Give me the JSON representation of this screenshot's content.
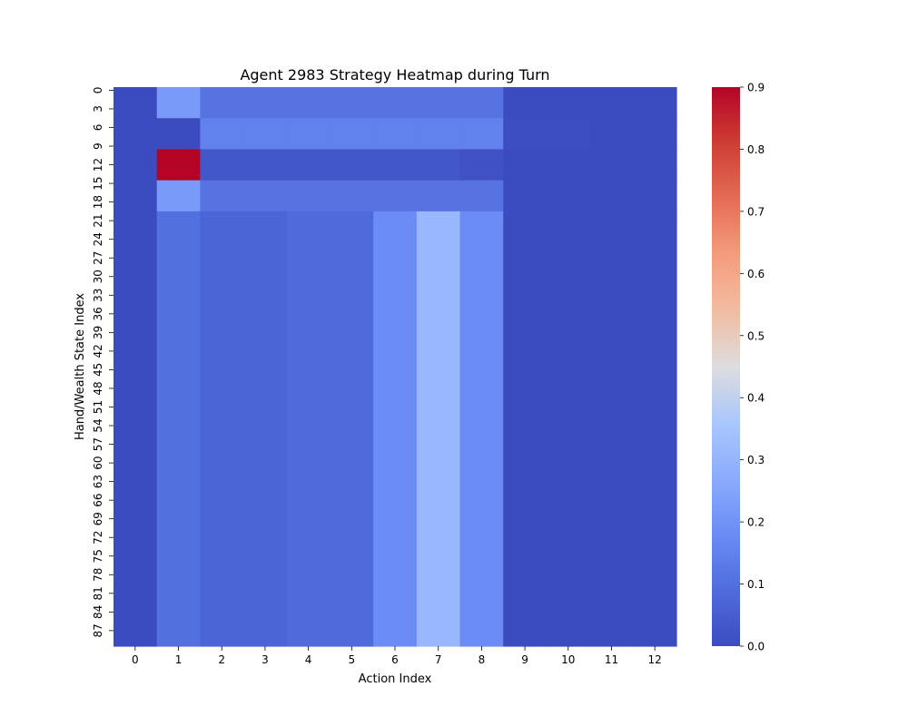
{
  "chart_data": {
    "type": "heatmap",
    "title": "Agent 2983 Strategy Heatmap during Turn",
    "xlabel": "Action Index",
    "ylabel": "Hand/Wealth State Index",
    "x_categories": [
      "0",
      "1",
      "2",
      "3",
      "4",
      "5",
      "6",
      "7",
      "8",
      "9",
      "10",
      "11",
      "12"
    ],
    "y_tick_labels": [
      "0",
      "3",
      "6",
      "9",
      "12",
      "15",
      "18",
      "21",
      "24",
      "27",
      "30",
      "33",
      "36",
      "39",
      "42",
      "45",
      "48",
      "51",
      "54",
      "57",
      "60",
      "63",
      "66",
      "69",
      "72",
      "75",
      "78",
      "81",
      "84",
      "87"
    ],
    "y_tick_rows": [
      0,
      3,
      6,
      9,
      12,
      15,
      18,
      21,
      24,
      27,
      30,
      33,
      36,
      39,
      42,
      45,
      48,
      51,
      54,
      57,
      60,
      63,
      66,
      69,
      72,
      75,
      78,
      81,
      84,
      87
    ],
    "row_count": 90,
    "colormap": "coolwarm",
    "vmin": 0.0,
    "vmax": 0.9,
    "colorbar_ticks": [
      "0.0",
      "0.1",
      "0.2",
      "0.3",
      "0.4",
      "0.5",
      "0.6",
      "0.7",
      "0.8",
      "0.9"
    ],
    "colorbar_tick_values": [
      0.0,
      0.1,
      0.2,
      0.3,
      0.4,
      0.5,
      0.6,
      0.7,
      0.8,
      0.9
    ],
    "row_blocks": [
      {
        "rows": [
          0,
          5
        ],
        "values": [
          0.0,
          0.22,
          0.11,
          0.11,
          0.11,
          0.11,
          0.11,
          0.11,
          0.11,
          0.0,
          0.0,
          0.0,
          0.0
        ]
      },
      {
        "rows": [
          5,
          10
        ],
        "values": [
          0.0,
          0.0,
          0.15,
          0.15,
          0.15,
          0.15,
          0.15,
          0.15,
          0.15,
          0.005,
          0.005,
          0.0,
          0.0
        ]
      },
      {
        "rows": [
          10,
          15
        ],
        "values": [
          0.0,
          0.9,
          0.03,
          0.03,
          0.03,
          0.03,
          0.03,
          0.03,
          0.015,
          0.0,
          0.0,
          0.0,
          0.0
        ]
      },
      {
        "rows": [
          15,
          20
        ],
        "values": [
          0.0,
          0.22,
          0.11,
          0.11,
          0.11,
          0.11,
          0.11,
          0.11,
          0.11,
          0.0,
          0.0,
          0.0,
          0.0
        ]
      },
      {
        "rows": [
          20,
          90
        ],
        "values": [
          0.0,
          0.1,
          0.07,
          0.07,
          0.085,
          0.085,
          0.18,
          0.31,
          0.18,
          0.0,
          0.0,
          0.0,
          0.0
        ]
      }
    ]
  }
}
